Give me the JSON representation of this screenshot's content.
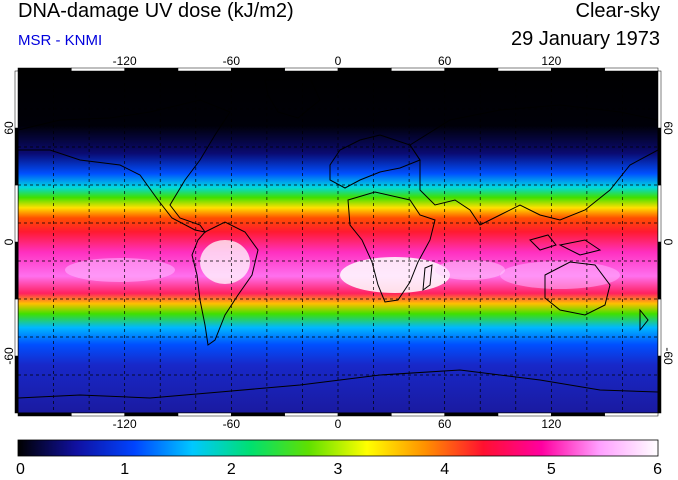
{
  "header": {
    "title": "DNA-damage UV dose (kJ/m2)",
    "source": "MSR - KNMI",
    "condition": "Clear-sky",
    "date": "29 January 1973"
  },
  "map": {
    "lon_range": [
      -180,
      180
    ],
    "lat_range": [
      -90,
      90
    ],
    "lon_ticks": [
      -120,
      -60,
      0,
      60,
      120
    ],
    "lon_tick_labels": [
      "-120",
      "-60",
      "0",
      "60",
      "120"
    ],
    "lat_ticks": [
      60,
      0,
      -60
    ],
    "lat_tick_labels": [
      "60",
      "0",
      "-60"
    ],
    "grid_spacing_deg": 20,
    "grid": true
  },
  "colorbar": {
    "min": 0,
    "max": 6,
    "tick_labels": [
      "0",
      "1",
      "2",
      "3",
      "4",
      "5",
      "6"
    ],
    "colors": [
      "#000000",
      "#1010a0",
      "#0044ff",
      "#00c8ff",
      "#00e070",
      "#60e000",
      "#ffff00",
      "#ff9000",
      "#ff1030",
      "#ff00a0",
      "#ffa0ff",
      "#ffffff"
    ]
  }
}
